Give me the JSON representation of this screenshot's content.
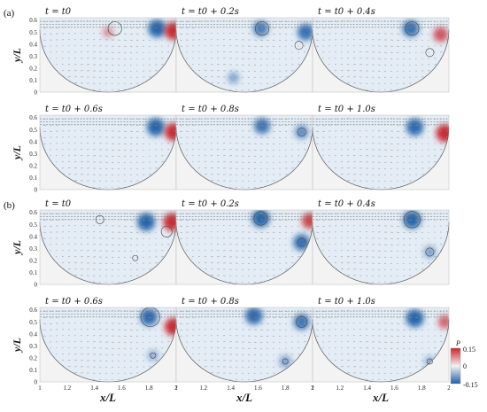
{
  "figure": {
    "parts": [
      {
        "label": "(a)",
        "panels": [
          {
            "title": "t = t0",
            "blobs": [
              {
                "x": 1.86,
                "y": 0.53,
                "v": -0.15
              },
              {
                "x": 1.98,
                "y": 0.51,
                "v": 0.15
              },
              {
                "x": 1.5,
                "y": 0.5,
                "v": 0.03
              }
            ],
            "circles": [
              {
                "x": 1.55,
                "y": 0.53,
                "r": 0.05
              }
            ]
          },
          {
            "title": "t = t0 + 0.2s",
            "blobs": [
              {
                "x": 1.62,
                "y": 0.53,
                "v": -0.11
              },
              {
                "x": 1.95,
                "y": 0.5,
                "v": -0.13
              },
              {
                "x": 1.42,
                "y": 0.12,
                "v": -0.04
              }
            ],
            "circles": [
              {
                "x": 1.63,
                "y": 0.53,
                "r": 0.05
              },
              {
                "x": 1.9,
                "y": 0.39,
                "r": 0.03
              }
            ]
          },
          {
            "title": "t = t0 + 0.4s",
            "blobs": [
              {
                "x": 1.72,
                "y": 0.53,
                "v": -0.13
              },
              {
                "x": 1.94,
                "y": 0.48,
                "v": 0.1
              }
            ],
            "circles": [
              {
                "x": 1.73,
                "y": 0.53,
                "r": 0.05
              },
              {
                "x": 1.86,
                "y": 0.33,
                "r": 0.03
              }
            ]
          },
          {
            "title": "t = t0 + 0.6s",
            "blobs": [
              {
                "x": 1.85,
                "y": 0.52,
                "v": -0.15
              },
              {
                "x": 1.98,
                "y": 0.48,
                "v": 0.15
              }
            ],
            "circles": []
          },
          {
            "title": "t = t0 + 0.8s",
            "blobs": [
              {
                "x": 1.63,
                "y": 0.53,
                "v": -0.12
              },
              {
                "x": 1.92,
                "y": 0.48,
                "v": -0.08
              }
            ],
            "circles": [
              {
                "x": 1.92,
                "y": 0.48,
                "r": 0.03
              }
            ]
          },
          {
            "title": "t = t0 + 1.0s",
            "blobs": [
              {
                "x": 1.75,
                "y": 0.52,
                "v": -0.14
              },
              {
                "x": 1.97,
                "y": 0.47,
                "v": 0.15
              }
            ],
            "circles": []
          }
        ]
      },
      {
        "label": "(b)",
        "panels": [
          {
            "title": "t = t0",
            "blobs": [
              {
                "x": 1.78,
                "y": 0.52,
                "v": -0.15
              },
              {
                "x": 1.97,
                "y": 0.52,
                "v": 0.15
              }
            ],
            "circles": [
              {
                "x": 1.44,
                "y": 0.54,
                "r": 0.03
              },
              {
                "x": 1.93,
                "y": 0.44,
                "r": 0.04
              },
              {
                "x": 1.7,
                "y": 0.22,
                "r": 0.02
              }
            ]
          },
          {
            "title": "t = t0 + 0.2s",
            "blobs": [
              {
                "x": 1.62,
                "y": 0.55,
                "v": -0.15
              },
              {
                "x": 1.92,
                "y": 0.35,
                "v": -0.13
              },
              {
                "x": 1.98,
                "y": 0.53,
                "v": 0.12
              }
            ],
            "circles": [
              {
                "x": 1.62,
                "y": 0.55,
                "r": 0.05
              },
              {
                "x": 1.92,
                "y": 0.35,
                "r": 0.03
              }
            ]
          },
          {
            "title": "t = t0 + 0.4s",
            "blobs": [
              {
                "x": 1.73,
                "y": 0.54,
                "v": -0.15
              },
              {
                "x": 1.86,
                "y": 0.27,
                "v": -0.05
              }
            ],
            "circles": [
              {
                "x": 1.73,
                "y": 0.54,
                "r": 0.06
              },
              {
                "x": 1.86,
                "y": 0.27,
                "r": 0.03
              }
            ]
          },
          {
            "title": "t = t0 + 0.6s",
            "blobs": [
              {
                "x": 1.8,
                "y": 0.54,
                "v": -0.14
              },
              {
                "x": 1.98,
                "y": 0.46,
                "v": 0.15
              },
              {
                "x": 1.83,
                "y": 0.22,
                "v": -0.03
              }
            ],
            "circles": [
              {
                "x": 1.81,
                "y": 0.54,
                "r": 0.07
              },
              {
                "x": 1.83,
                "y": 0.22,
                "r": 0.02
              }
            ]
          },
          {
            "title": "t = t0 + 0.8s",
            "blobs": [
              {
                "x": 1.57,
                "y": 0.55,
                "v": -0.14
              },
              {
                "x": 1.92,
                "y": 0.5,
                "v": -0.12
              },
              {
                "x": 1.8,
                "y": 0.17,
                "v": -0.05
              }
            ],
            "circles": [
              {
                "x": 1.92,
                "y": 0.5,
                "r": 0.04
              },
              {
                "x": 1.8,
                "y": 0.17,
                "r": 0.02
              }
            ]
          },
          {
            "title": "t = t0 + 1.0s",
            "blobs": [
              {
                "x": 1.75,
                "y": 0.53,
                "v": -0.15
              },
              {
                "x": 1.97,
                "y": 0.5,
                "v": 0.08
              },
              {
                "x": 1.86,
                "y": 0.17,
                "v": -0.03
              }
            ],
            "circles": [
              {
                "x": 1.86,
                "y": 0.17,
                "r": 0.02
              }
            ]
          }
        ]
      }
    ],
    "axes": {
      "y_label": "y/L",
      "x_label": "x/L",
      "xlim": [
        1,
        2
      ],
      "ylim": [
        0,
        0.62
      ],
      "x_ticks": [
        "1",
        "1.2",
        "1.4",
        "1.6",
        "1.8",
        "2"
      ],
      "x_tick_values": [
        1,
        1.2,
        1.4,
        1.6,
        1.8,
        2
      ],
      "y_ticks": [
        "0",
        "0.1",
        "0.2",
        "0.3",
        "0.4",
        "0.5",
        "0.6"
      ],
      "y_tick_values": [
        0,
        0.1,
        0.2,
        0.3,
        0.4,
        0.5,
        0.6
      ]
    },
    "colorbar": {
      "label": "P",
      "ticks": [
        "0.15",
        "0",
        "-0.15"
      ],
      "min": -0.15,
      "max": 0.15,
      "colors": {
        "neg": "#1f5fa8",
        "mid": "#f2f2f2",
        "pos": "#c8242b"
      }
    }
  }
}
